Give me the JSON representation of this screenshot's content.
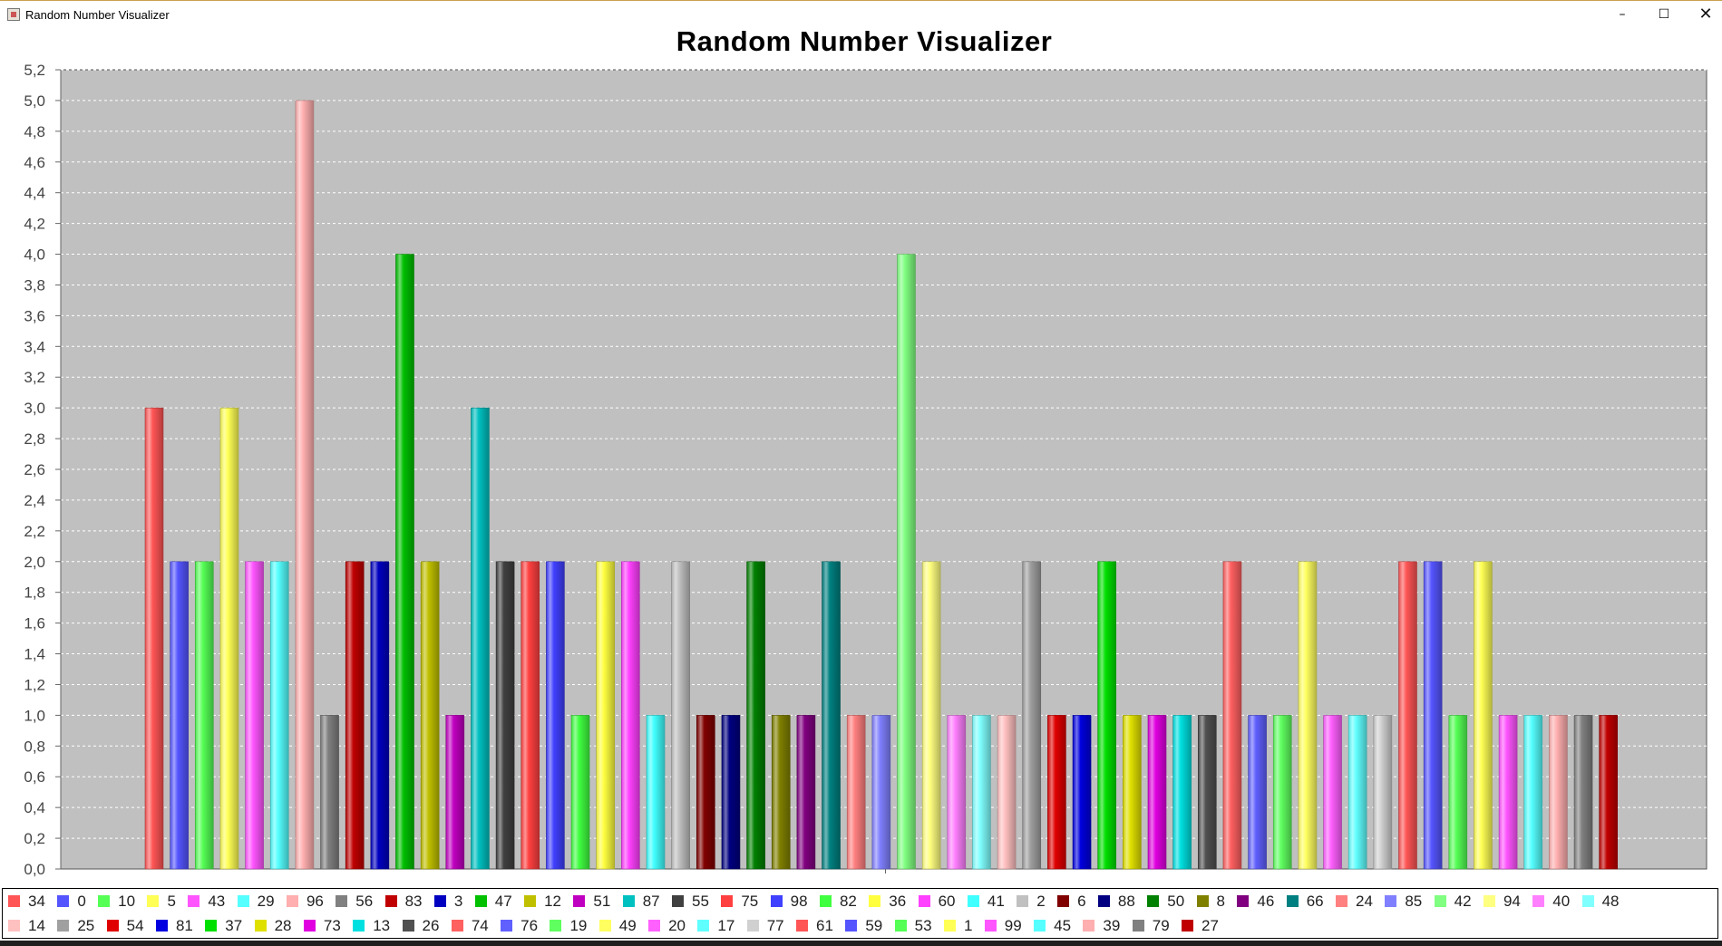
{
  "window": {
    "title": "Random Number Visualizer",
    "controls": {
      "minimize": "–",
      "maximize": "☐",
      "close": "✕"
    }
  },
  "colors": {
    "plot_background": "#c0c0c0",
    "gridline": "#ffffff",
    "palette": [
      "#ff5555",
      "#5555ff",
      "#55ff55",
      "#ffff55",
      "#ff55ff",
      "#55ffff",
      "#ffafaf",
      "#808080",
      "#c00000",
      "#0000c0",
      "#00c000",
      "#c0c000",
      "#c000c0",
      "#00c0c0",
      "#404040",
      "#ff4040",
      "#4040ff",
      "#40ff40",
      "#ffff40",
      "#ff40ff",
      "#40ffff",
      "#c0c0c0",
      "#800000",
      "#000080",
      "#008000",
      "#808000",
      "#800080",
      "#008080",
      "#ff8080",
      "#8080ff",
      "#80ff80",
      "#ffff80",
      "#ff80ff",
      "#80ffff",
      "#ffc0c0",
      "#a0a0a0",
      "#e00000",
      "#0000e0",
      "#00e000",
      "#e0e000",
      "#e000e0",
      "#00e0e0",
      "#505050",
      "#ff6060",
      "#6060ff",
      "#60ff60",
      "#ffff60",
      "#ff60ff",
      "#60ffff",
      "#d0d0d0"
    ]
  },
  "chart_data": {
    "type": "bar",
    "title": "Random Number Visualizer",
    "xlabel": "",
    "ylabel": "",
    "ylim": [
      0,
      5.2
    ],
    "ytick_step": 0.2,
    "decimal_separator": ",",
    "grid": true,
    "legend_position": "bottom",
    "categories": [
      "34",
      "0",
      "10",
      "5",
      "43",
      "29",
      "96",
      "56",
      "83",
      "3",
      "47",
      "12",
      "51",
      "87",
      "55",
      "75",
      "98",
      "82",
      "36",
      "60",
      "41",
      "2",
      "6",
      "88",
      "50",
      "8",
      "46",
      "66",
      "24",
      "85",
      "42",
      "94",
      "40",
      "48",
      "14",
      "25",
      "54",
      "81",
      "37",
      "28",
      "73",
      "13",
      "26",
      "74",
      "76",
      "19",
      "49",
      "20",
      "17",
      "77",
      "61",
      "59",
      "53",
      "1",
      "99",
      "45",
      "39",
      "79",
      "27"
    ],
    "values": [
      3,
      2,
      2,
      3,
      2,
      2,
      5,
      1,
      2,
      2,
      4,
      2,
      1,
      3,
      2,
      2,
      2,
      1,
      2,
      2,
      1,
      2,
      1,
      1,
      2,
      1,
      1,
      2,
      1,
      1,
      4,
      2,
      1,
      1,
      1,
      2,
      1,
      1,
      2,
      1,
      1,
      1,
      1,
      2,
      1,
      1,
      2,
      1,
      1,
      1,
      2,
      2,
      1,
      2,
      1,
      1,
      1,
      1,
      1
    ]
  }
}
